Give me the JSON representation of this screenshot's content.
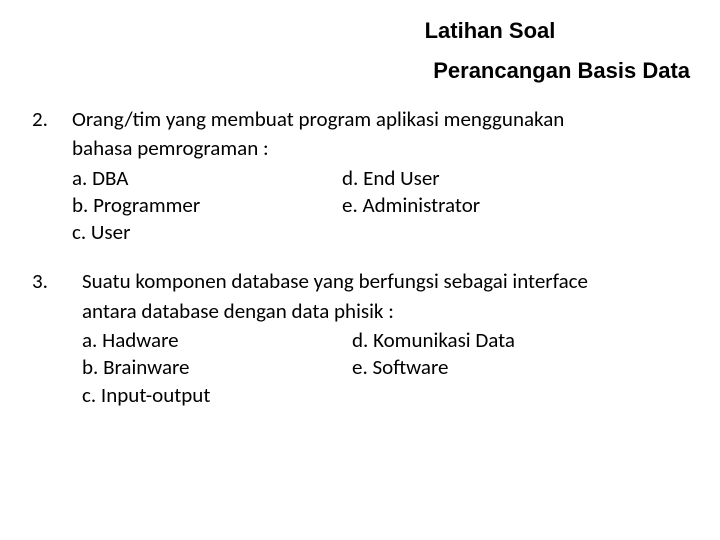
{
  "header": {
    "title_main": "Latihan Soal",
    "title_sub": "Perancangan Basis Data"
  },
  "questions": [
    {
      "number": "2.",
      "text_line1": "Orang/tim yang membuat program aplikasi menggunakan",
      "text_line2": "bahasa pemrograman :",
      "options": {
        "a": "a. DBA",
        "b": "b. Programmer",
        "c": "c. User",
        "d": "d. End User",
        "e": "e. Administrator"
      }
    },
    {
      "number": "3.",
      "text_line1": "Suatu komponen database yang berfungsi sebagai interface",
      "text_line2": "antara database dengan data phisik :",
      "options": {
        "a": "a. Hadware",
        "b": "b. Brainware",
        "c": "c. Input-output",
        "d": "d. Komunikasi Data",
        "e": "e. Software"
      }
    }
  ],
  "styling": {
    "background_color": "#ffffff",
    "text_color": "#000000",
    "title_fontsize": 22,
    "body_fontsize": 21,
    "title_font": "Arial",
    "body_font": "Calibri"
  }
}
